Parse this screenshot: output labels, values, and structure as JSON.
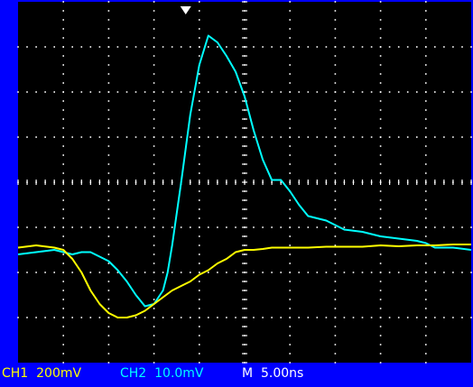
{
  "status_bar": {
    "ch1": {
      "label": "CH1",
      "scale": "200mV",
      "color": "#ffff00"
    },
    "ch2": {
      "label": "CH2",
      "scale": "10.0mV",
      "color": "#00ffff"
    },
    "timebase": {
      "label": "M",
      "value": "5.00ns",
      "color": "#ffffff"
    }
  },
  "colors": {
    "background": "#0000ff",
    "screen": "#000000",
    "grid": "#ffffff",
    "trigger_marker": "#ffffff"
  },
  "chart_data": {
    "type": "line",
    "grid": true,
    "divisions": {
      "x": 10,
      "y": 8
    },
    "x_unit": "div",
    "y_unit": "div",
    "series": [
      {
        "channel": "CH2",
        "color": "#00ffff",
        "x": [
          0,
          0.4,
          0.8,
          1.0,
          1.2,
          1.4,
          1.6,
          1.8,
          2.0,
          2.2,
          2.4,
          2.6,
          2.8,
          3.0,
          3.2,
          3.3,
          3.4,
          3.6,
          3.8,
          4.0,
          4.2,
          4.4,
          4.6,
          4.8,
          5.0,
          5.2,
          5.4,
          5.6,
          5.8,
          6.0,
          6.2,
          6.4,
          6.8,
          7.0,
          7.2,
          7.6,
          8.0,
          8.4,
          8.8,
          9.0,
          9.2,
          9.6,
          10
        ],
        "y": [
          2.4,
          2.45,
          2.5,
          2.45,
          2.4,
          2.45,
          2.45,
          2.35,
          2.25,
          2.05,
          1.8,
          1.5,
          1.25,
          1.3,
          1.6,
          2.0,
          2.6,
          4.0,
          5.5,
          6.6,
          7.25,
          7.1,
          6.8,
          6.45,
          5.9,
          5.15,
          4.5,
          4.05,
          4.05,
          3.8,
          3.5,
          3.25,
          3.15,
          3.05,
          2.95,
          2.9,
          2.8,
          2.75,
          2.7,
          2.65,
          2.55,
          2.55,
          2.5
        ]
      },
      {
        "channel": "CH1",
        "color": "#ffff00",
        "x": [
          0,
          0.4,
          0.8,
          1.0,
          1.2,
          1.4,
          1.6,
          1.8,
          2.0,
          2.2,
          2.4,
          2.6,
          2.8,
          3.0,
          3.2,
          3.4,
          3.6,
          3.8,
          4.0,
          4.2,
          4.4,
          4.6,
          4.8,
          5.0,
          5.2,
          5.4,
          5.6,
          5.8,
          6.0,
          6.4,
          6.8,
          7.2,
          7.6,
          8.0,
          8.4,
          8.8,
          9.2,
          9.6,
          10
        ],
        "y": [
          2.55,
          2.6,
          2.55,
          2.5,
          2.3,
          2.0,
          1.6,
          1.3,
          1.1,
          1.0,
          1.0,
          1.05,
          1.15,
          1.3,
          1.45,
          1.6,
          1.7,
          1.8,
          1.95,
          2.05,
          2.2,
          2.3,
          2.45,
          2.5,
          2.5,
          2.52,
          2.55,
          2.55,
          2.55,
          2.55,
          2.57,
          2.57,
          2.57,
          2.6,
          2.58,
          2.6,
          2.6,
          2.62,
          2.62
        ]
      }
    ],
    "trigger": {
      "x": 3.7
    }
  }
}
